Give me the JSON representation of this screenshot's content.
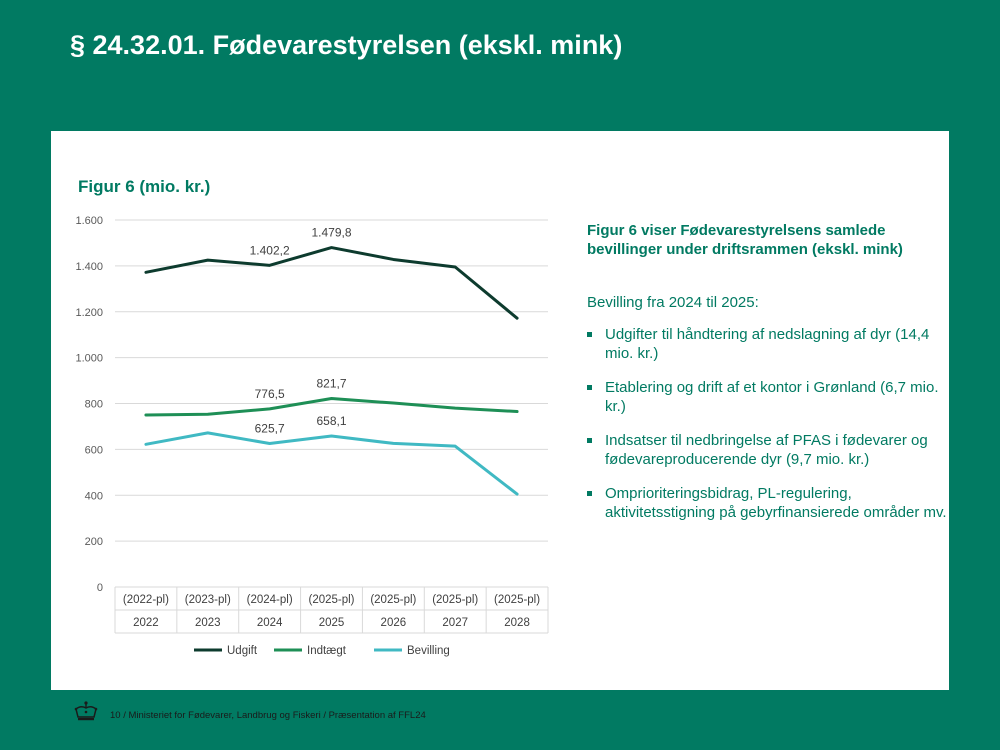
{
  "slide": {
    "title": "§ 24.32.01. Fødevarestyrelsen (ekskl. mink)",
    "footer": "10 / Ministeriet for Fødevarer, Landbrug og Fiskeri / Præsentation af FFL24"
  },
  "side": {
    "heading": "Figur 6 viser Fødevarestyrelsens samlede bevillinger under driftsrammen (ekskl. mink)",
    "subheading": "Bevilling fra 2024 til 2025:",
    "bullets": [
      "Udgifter til håndtering af nedslagning af dyr (14,4 mio. kr.)",
      "Etablering og drift af et kontor i Grønland (6,7 mio. kr.)",
      "Indsatser til nedbringelse af PFAS i fødevarer og fødevareproducerende dyr (9,7 mio. kr.)",
      "Omprioriteringsbidrag, PL-regulering, aktivitetsstigning på gebyrfinansierede områder mv."
    ]
  },
  "colors": {
    "background": "#017a62",
    "accent": "#017a62",
    "udgift": "#0d3b2e",
    "indtaegt": "#1e8f56",
    "bevilling": "#40b9c3"
  },
  "chart_data": {
    "type": "line",
    "title": "Figur 6 (mio. kr.)",
    "categories_top": [
      "(2022-pl)",
      "(2023-pl)",
      "(2024-pl)",
      "(2025-pl)",
      "(2025-pl)",
      "(2025-pl)",
      "(2025-pl)"
    ],
    "categories": [
      "2022",
      "2023",
      "2024",
      "2025",
      "2026",
      "2027",
      "2028"
    ],
    "ylim": [
      0,
      1600
    ],
    "yticks": [
      0,
      200,
      400,
      600,
      800,
      1000,
      1200,
      1400,
      1600
    ],
    "ytick_labels": [
      "0",
      "200",
      "400",
      "600",
      "800",
      "1.000",
      "1.200",
      "1.400",
      "1.600"
    ],
    "grid": true,
    "legend": "bottom",
    "series": [
      {
        "name": "Udgift",
        "color": "#0d3b2e",
        "values": [
          1372,
          1425,
          1402.2,
          1479.8,
          1428,
          1395,
          1172
        ],
        "labels": [
          null,
          null,
          "1.402,2",
          "1.479,8",
          null,
          null,
          null
        ]
      },
      {
        "name": "Indtægt",
        "color": "#1e8f56",
        "values": [
          750,
          753,
          776.5,
          821.7,
          802,
          780,
          765
        ],
        "labels": [
          null,
          null,
          "776,5",
          "821,7",
          null,
          null,
          null
        ]
      },
      {
        "name": "Bevilling",
        "color": "#40b9c3",
        "values": [
          622,
          672,
          625.7,
          658.1,
          626,
          614,
          405
        ],
        "labels": [
          null,
          null,
          "625,7",
          "658,1",
          null,
          null,
          null
        ]
      }
    ]
  }
}
